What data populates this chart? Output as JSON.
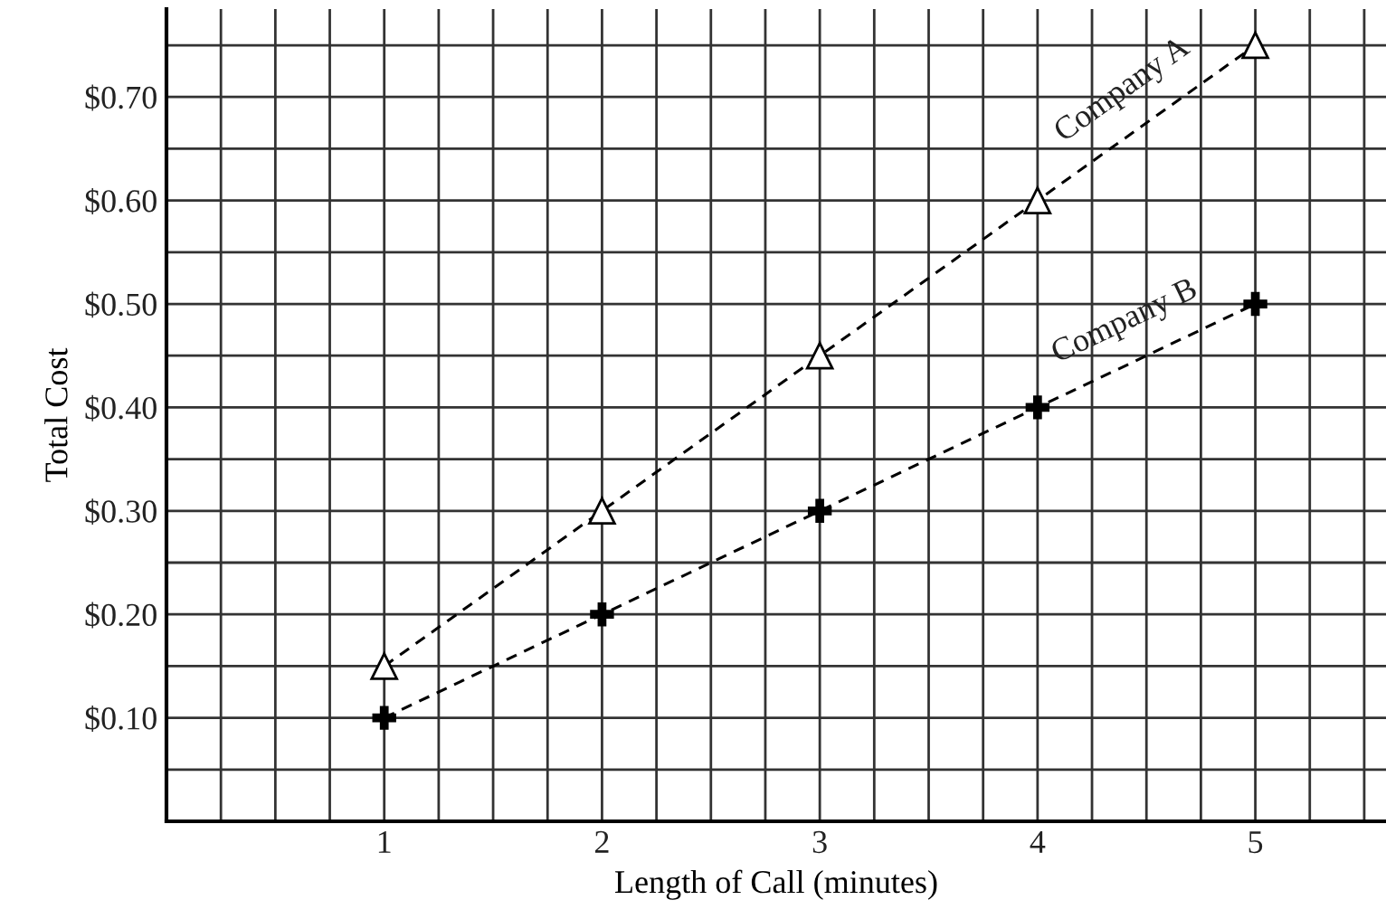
{
  "chart_data": {
    "type": "line",
    "xlabel": "Length of Call (minutes)",
    "ylabel": "Total Cost",
    "x": [
      1,
      2,
      3,
      4,
      5
    ],
    "series": [
      {
        "name": "Company A",
        "color": "#000000",
        "values": [
          0.15,
          0.3,
          0.45,
          0.6,
          0.75
        ],
        "marker": "triangle"
      },
      {
        "name": "Company B",
        "color": "#000000",
        "values": [
          0.1,
          0.2,
          0.3,
          0.4,
          0.5
        ],
        "marker": "cross"
      }
    ],
    "line_style": "dashed",
    "grid": true,
    "legend": false,
    "xlim": [
      0,
      5.6
    ],
    "ylim": [
      0,
      0.785
    ],
    "xticks": [
      {
        "value": 0.25,
        "label": null
      },
      {
        "value": 0.5,
        "label": null
      },
      {
        "value": 0.75,
        "label": null
      },
      1,
      {
        "value": 1.25,
        "label": null
      },
      {
        "value": 1.5,
        "label": null
      },
      {
        "value": 1.75,
        "label": null
      },
      2,
      {
        "value": 2.25,
        "label": null
      },
      {
        "value": 2.5,
        "label": null
      },
      {
        "value": 2.75,
        "label": null
      },
      3,
      {
        "value": 3.25,
        "label": null
      },
      {
        "value": 3.5,
        "label": null
      },
      {
        "value": 3.75,
        "label": null
      },
      4,
      {
        "value": 4.25,
        "label": null
      },
      {
        "value": 4.5,
        "label": null
      },
      {
        "value": 4.75,
        "label": null
      },
      5,
      {
        "value": 5.25,
        "label": null
      },
      {
        "value": 5.5,
        "label": null
      }
    ],
    "yticks": [
      {
        "value": 0.05,
        "label": null
      },
      {
        "value": 0.1,
        "label": "$0.10"
      },
      {
        "value": 0.15,
        "label": null
      },
      {
        "value": 0.2,
        "label": "$0.20"
      },
      {
        "value": 0.25,
        "label": null
      },
      {
        "value": 0.3,
        "label": "$0.30"
      },
      {
        "value": 0.35,
        "label": null
      },
      {
        "value": 0.4,
        "label": "$0.40"
      },
      {
        "value": 0.45,
        "label": null
      },
      {
        "value": 0.5,
        "label": "$0.50"
      },
      {
        "value": 0.55,
        "label": null
      },
      {
        "value": 0.6,
        "label": "$0.60"
      },
      {
        "value": 0.65,
        "label": null
      },
      {
        "value": 0.7,
        "label": "$0.70"
      },
      {
        "value": 0.75,
        "label": null
      }
    ]
  }
}
